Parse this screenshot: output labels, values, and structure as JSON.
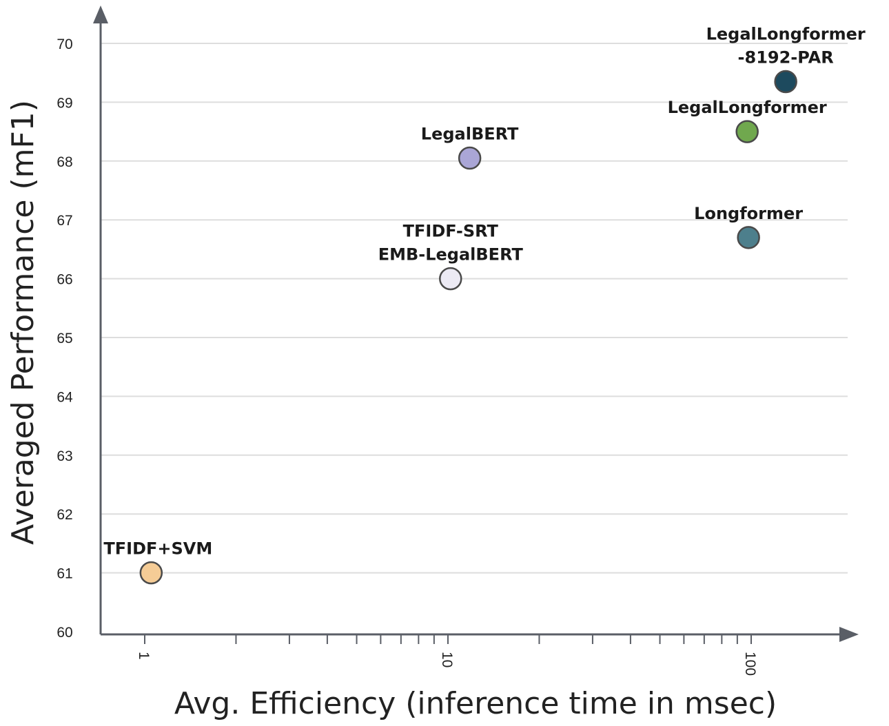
{
  "chart_data": {
    "type": "scatter",
    "title": "",
    "xlabel": "Avg. Efficiency (inference time in msec)",
    "ylabel": "Averaged Performance (mF1)",
    "xscale": "log",
    "ylim": [
      60,
      70
    ],
    "y_ticks": [
      60,
      61,
      62,
      63,
      64,
      65,
      66,
      67,
      68,
      69,
      70
    ],
    "x_tick_labels": [
      "1",
      "10",
      "100"
    ],
    "points": [
      {
        "label": [
          "TFIDF+SVM"
        ],
        "x": 1.05,
        "y": 61,
        "color": "#f5cc96"
      },
      {
        "label": [
          "TFIDF-SRT",
          "EMB-LegalBERT"
        ],
        "x": 10.2,
        "y": 66,
        "color": "#eceaf4"
      },
      {
        "label": [
          "LegalBERT"
        ],
        "x": 11.8,
        "y": 68.05,
        "color": "#aaa6d6"
      },
      {
        "label": [
          "Longformer"
        ],
        "x": 98,
        "y": 66.7,
        "color": "#4d7f8c"
      },
      {
        "label": [
          "LegalLongformer"
        ],
        "x": 97,
        "y": 68.5,
        "color": "#70a84e"
      },
      {
        "label": [
          "LegalLongformer",
          "-8192-PAR"
        ],
        "x": 130,
        "y": 69.35,
        "color": "#1d4a5e"
      }
    ]
  }
}
